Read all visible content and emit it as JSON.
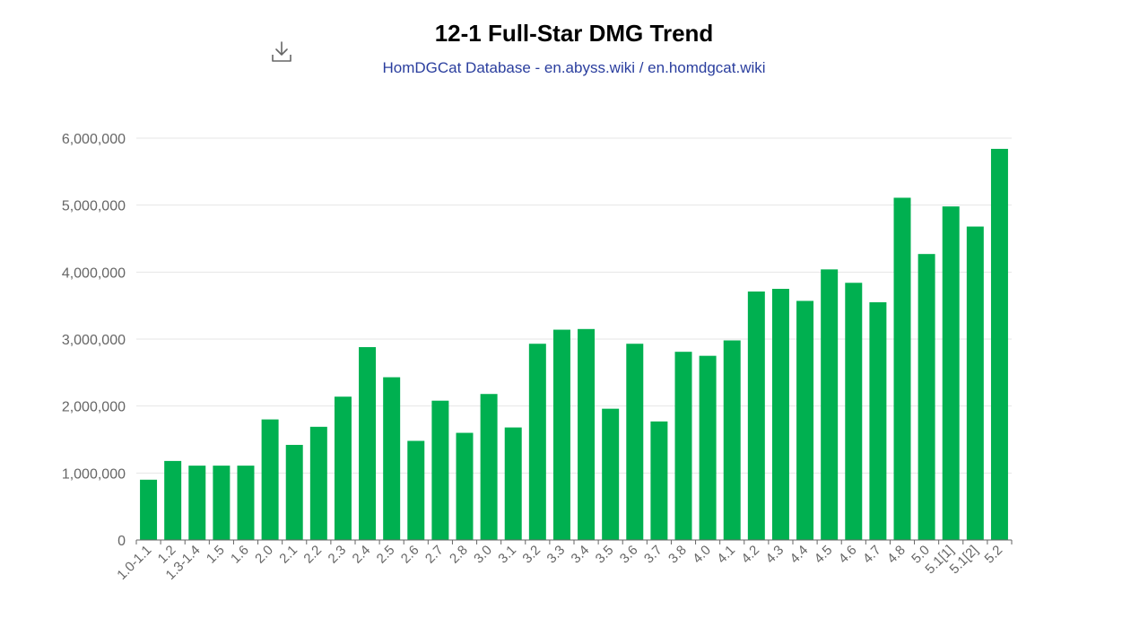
{
  "colors": {
    "bar": "#00b050",
    "subtitle": "#2a3e9e",
    "grid": "#e6e6e6",
    "axis": "#666666",
    "tick_text": "#666666"
  },
  "toolbar": {
    "download_icon": "download-icon"
  },
  "chart_data": {
    "type": "bar",
    "title": "12-1 Full-Star DMG Trend",
    "subtitle": "HomDGCat Database - en.abyss.wiki / en.homdgcat.wiki",
    "xlabel": "",
    "ylabel": "",
    "ylim": [
      0,
      6000000
    ],
    "yticks": [
      "0",
      "1,000,000",
      "2,000,000",
      "3,000,000",
      "4,000,000",
      "5,000,000",
      "6,000,000"
    ],
    "grid": true,
    "legend": "none",
    "categories": [
      "1.0-1.1",
      "1.2",
      "1.3-1.4",
      "1.5",
      "1.6",
      "2.0",
      "2.1",
      "2.2",
      "2.3",
      "2.4",
      "2.5",
      "2.6",
      "2.7",
      "2.8",
      "3.0",
      "3.1",
      "3.2",
      "3.3",
      "3.4",
      "3.5",
      "3.6",
      "3.7",
      "3.8",
      "4.0",
      "4.1",
      "4.2",
      "4.3",
      "4.4",
      "4.5",
      "4.6",
      "4.7",
      "4.8",
      "5.0",
      "5.1[1]",
      "5.1[2]",
      "5.2"
    ],
    "values": [
      900000,
      1180000,
      1110000,
      1110000,
      1110000,
      1800000,
      1420000,
      1690000,
      2140000,
      2880000,
      2430000,
      1480000,
      2080000,
      1600000,
      2180000,
      1680000,
      2930000,
      3140000,
      3150000,
      1960000,
      2930000,
      1770000,
      2810000,
      2750000,
      2980000,
      3710000,
      3750000,
      3570000,
      4040000,
      3840000,
      3550000,
      5110000,
      4270000,
      4980000,
      4680000,
      5840000
    ]
  }
}
